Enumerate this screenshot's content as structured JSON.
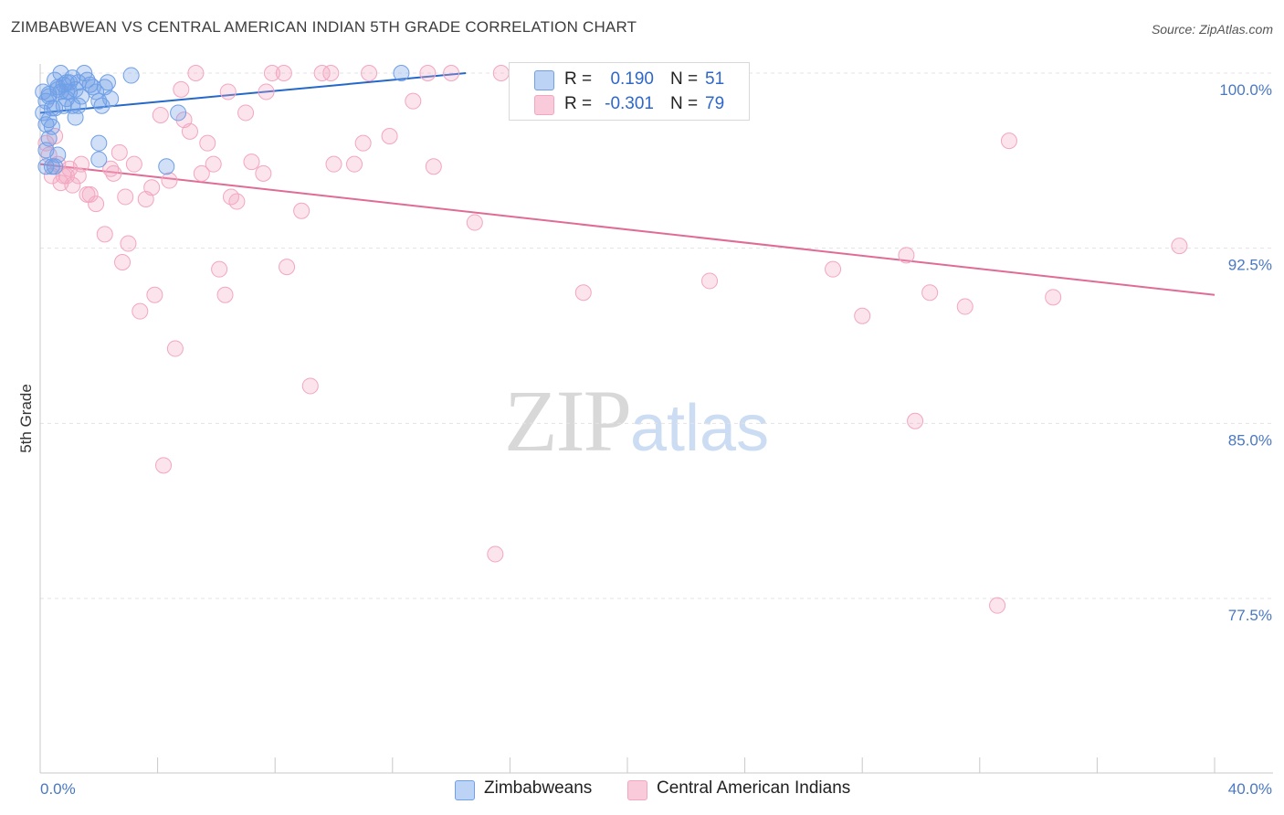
{
  "title": "ZIMBABWEAN VS CENTRAL AMERICAN INDIAN 5TH GRADE CORRELATION CHART",
  "source": "Source: ZipAtlas.com",
  "watermark": {
    "part1": "ZIP",
    "part2": "atlas"
  },
  "legend": {
    "rows": [
      {
        "r_label": "R =",
        "r_value": "0.190",
        "n_label": "N =",
        "n_value": "51"
      },
      {
        "r_label": "R =",
        "r_value": "-0.301",
        "n_label": "N =",
        "n_value": "79"
      }
    ]
  },
  "bottom_legend": [
    "Zimbabweans",
    "Central American Indians"
  ],
  "chart_data": {
    "type": "scatter",
    "title": "ZIMBABWEAN VS CENTRAL AMERICAN INDIAN 5TH GRADE CORRELATION CHART",
    "xlabel": "",
    "ylabel": "5th Grade",
    "xlim": [
      0,
      40
    ],
    "ylim": [
      70,
      100.6
    ],
    "x_tick_labels": [
      "0.0%",
      "40.0%"
    ],
    "y_ticks": [
      100,
      92.5,
      85,
      77.5
    ],
    "y_tick_labels": [
      "100.0%",
      "92.5%",
      "85.0%",
      "77.5%"
    ],
    "grid": true,
    "series": [
      {
        "name": "Zimbabweans",
        "color": "#6f9fe6",
        "line_color": "#2468c9",
        "trend": {
          "x": [
            0,
            14.5
          ],
          "y": [
            98.3,
            100.0
          ]
        },
        "points": [
          [
            0.3,
            99.1
          ],
          [
            0.5,
            99.7
          ],
          [
            0.6,
            99.3
          ],
          [
            0.7,
            100.0
          ],
          [
            0.8,
            99.5
          ],
          [
            0.9,
            99.2
          ],
          [
            1.0,
            99.6
          ],
          [
            1.1,
            99.8
          ],
          [
            1.2,
            99.3
          ],
          [
            1.3,
            99.6
          ],
          [
            1.5,
            100.0
          ],
          [
            1.6,
            99.7
          ],
          [
            1.7,
            99.5
          ],
          [
            1.8,
            99.4
          ],
          [
            2.0,
            98.8
          ],
          [
            2.1,
            98.6
          ],
          [
            0.2,
            98.8
          ],
          [
            0.4,
            98.5
          ],
          [
            0.3,
            98.0
          ],
          [
            0.2,
            97.8
          ],
          [
            0.4,
            97.7
          ],
          [
            0.1,
            98.3
          ],
          [
            0.8,
            98.6
          ],
          [
            1.1,
            98.6
          ],
          [
            1.2,
            98.1
          ],
          [
            0.6,
            96.5
          ],
          [
            0.4,
            96.0
          ],
          [
            0.2,
            96.0
          ],
          [
            0.5,
            96.0
          ],
          [
            2.0,
            97.0
          ],
          [
            2.0,
            96.3
          ],
          [
            3.1,
            99.9
          ],
          [
            4.7,
            98.3
          ],
          [
            4.3,
            96.0
          ],
          [
            12.3,
            100.0
          ],
          [
            0.3,
            99.0
          ],
          [
            0.9,
            99.6
          ],
          [
            1.4,
            99.0
          ],
          [
            1.9,
            99.2
          ],
          [
            2.2,
            99.4
          ],
          [
            2.3,
            99.6
          ],
          [
            0.1,
            99.2
          ],
          [
            0.7,
            99.2
          ],
          [
            1.0,
            99.2
          ],
          [
            2.4,
            98.9
          ],
          [
            0.2,
            96.7
          ],
          [
            0.3,
            97.2
          ],
          [
            0.5,
            98.5
          ],
          [
            1.3,
            98.6
          ],
          [
            0.6,
            99.4
          ],
          [
            0.9,
            98.9
          ]
        ]
      },
      {
        "name": "Central American Indians",
        "color": "#f3a6bf",
        "line_color": "#e06b95",
        "trend": {
          "x": [
            0,
            40
          ],
          "y": [
            96.1,
            90.5
          ]
        },
        "points": [
          [
            0.3,
            96.5
          ],
          [
            0.4,
            95.6
          ],
          [
            0.6,
            96.1
          ],
          [
            0.7,
            95.3
          ],
          [
            0.8,
            95.6
          ],
          [
            0.9,
            95.6
          ],
          [
            1.0,
            95.9
          ],
          [
            1.1,
            95.2
          ],
          [
            1.3,
            95.6
          ],
          [
            1.4,
            96.1
          ],
          [
            1.6,
            94.8
          ],
          [
            1.7,
            94.8
          ],
          [
            1.9,
            94.4
          ],
          [
            2.2,
            93.1
          ],
          [
            2.4,
            95.9
          ],
          [
            2.5,
            95.7
          ],
          [
            2.7,
            96.6
          ],
          [
            2.9,
            94.7
          ],
          [
            3.0,
            92.7
          ],
          [
            3.2,
            96.1
          ],
          [
            2.8,
            91.9
          ],
          [
            3.4,
            89.8
          ],
          [
            3.6,
            94.6
          ],
          [
            3.8,
            95.1
          ],
          [
            3.9,
            90.5
          ],
          [
            4.1,
            98.2
          ],
          [
            4.2,
            83.2
          ],
          [
            4.4,
            95.4
          ],
          [
            4.6,
            88.2
          ],
          [
            4.8,
            99.3
          ],
          [
            4.9,
            98.0
          ],
          [
            5.1,
            97.5
          ],
          [
            5.3,
            100.0
          ],
          [
            5.5,
            95.7
          ],
          [
            5.7,
            97.0
          ],
          [
            5.9,
            96.1
          ],
          [
            6.1,
            91.6
          ],
          [
            6.3,
            90.5
          ],
          [
            6.4,
            99.2
          ],
          [
            6.5,
            94.7
          ],
          [
            6.7,
            94.5
          ],
          [
            7.0,
            98.3
          ],
          [
            7.2,
            96.2
          ],
          [
            7.6,
            95.7
          ],
          [
            7.7,
            99.2
          ],
          [
            7.9,
            100.0
          ],
          [
            8.3,
            100.0
          ],
          [
            8.4,
            91.7
          ],
          [
            8.9,
            94.1
          ],
          [
            9.2,
            86.6
          ],
          [
            9.6,
            100.0
          ],
          [
            9.9,
            100.0
          ],
          [
            10.0,
            96.1
          ],
          [
            10.7,
            96.1
          ],
          [
            11.0,
            97.0
          ],
          [
            11.2,
            100.0
          ],
          [
            11.9,
            97.3
          ],
          [
            12.7,
            98.8
          ],
          [
            13.2,
            100.0
          ],
          [
            13.4,
            96.0
          ],
          [
            14.0,
            100.0
          ],
          [
            14.8,
            93.6
          ],
          [
            15.5,
            79.4
          ],
          [
            15.7,
            100.0
          ],
          [
            16.4,
            100.0
          ],
          [
            18.5,
            90.6
          ],
          [
            22.8,
            91.1
          ],
          [
            27.0,
            91.6
          ],
          [
            28.0,
            89.6
          ],
          [
            29.5,
            92.2
          ],
          [
            29.8,
            85.1
          ],
          [
            30.3,
            90.6
          ],
          [
            31.5,
            90.0
          ],
          [
            33.0,
            97.1
          ],
          [
            32.6,
            77.2
          ],
          [
            34.5,
            90.4
          ],
          [
            38.8,
            92.6
          ],
          [
            0.5,
            97.3
          ],
          [
            0.2,
            97.0
          ]
        ]
      }
    ]
  }
}
